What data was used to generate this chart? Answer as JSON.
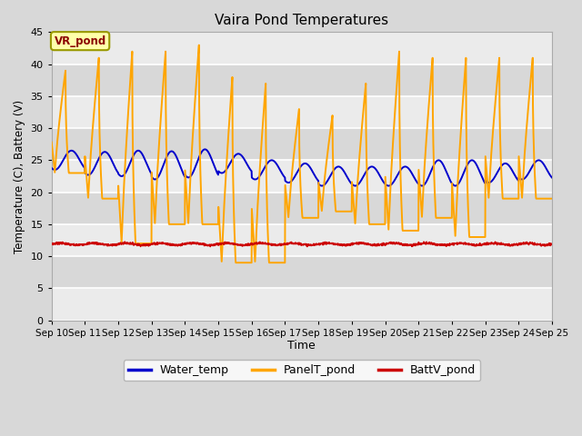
{
  "title": "Vaira Pond Temperatures",
  "xlabel": "Time",
  "ylabel": "Temperature (C), Battery (V)",
  "ylim": [
    0,
    45
  ],
  "yticks": [
    0,
    5,
    10,
    15,
    20,
    25,
    30,
    35,
    40,
    45
  ],
  "x_labels": [
    "Sep 10",
    "Sep 11",
    "Sep 12",
    "Sep 13",
    "Sep 14",
    "Sep 15",
    "Sep 16",
    "Sep 17",
    "Sep 18",
    "Sep 19",
    "Sep 20",
    "Sep 21",
    "Sep 22",
    "Sep 23",
    "Sep 24",
    "Sep 25"
  ],
  "annotation_text": "VR_pond",
  "annotation_box_facecolor": "#ffffaa",
  "annotation_text_color": "#8b0000",
  "annotation_edge_color": "#999900",
  "water_temp_color": "#0000cc",
  "panel_temp_color": "#ffa500",
  "batt_color": "#cc0000",
  "fig_bg_color": "#d8d8d8",
  "plot_bg_light": "#ebebeb",
  "plot_bg_dark": "#d8d8d8",
  "grid_color": "#ffffff",
  "legend_labels": [
    "Water_temp",
    "PanelT_pond",
    "BattV_pond"
  ],
  "n_days": 15,
  "points_per_day": 144,
  "panel_low": [
    23,
    19,
    12,
    15,
    15,
    9,
    9,
    16,
    17,
    15,
    14,
    16,
    13,
    19,
    19
  ],
  "panel_high": [
    39,
    41,
    42,
    42,
    43,
    38,
    37,
    33,
    32,
    37,
    42,
    41,
    41,
    41,
    41
  ],
  "water_base": [
    25.0,
    24.5,
    24.5,
    24.2,
    24.5,
    24.5,
    23.5,
    23.0,
    22.5,
    22.5,
    22.5,
    23.0,
    23.0,
    23.0,
    23.5
  ],
  "water_amp": [
    1.5,
    1.8,
    2.0,
    2.2,
    2.2,
    1.5,
    1.5,
    1.5,
    1.5,
    1.5,
    1.5,
    2.0,
    2.0,
    1.5,
    1.5
  ],
  "batt_base": 11.9,
  "batt_amp": 0.15
}
